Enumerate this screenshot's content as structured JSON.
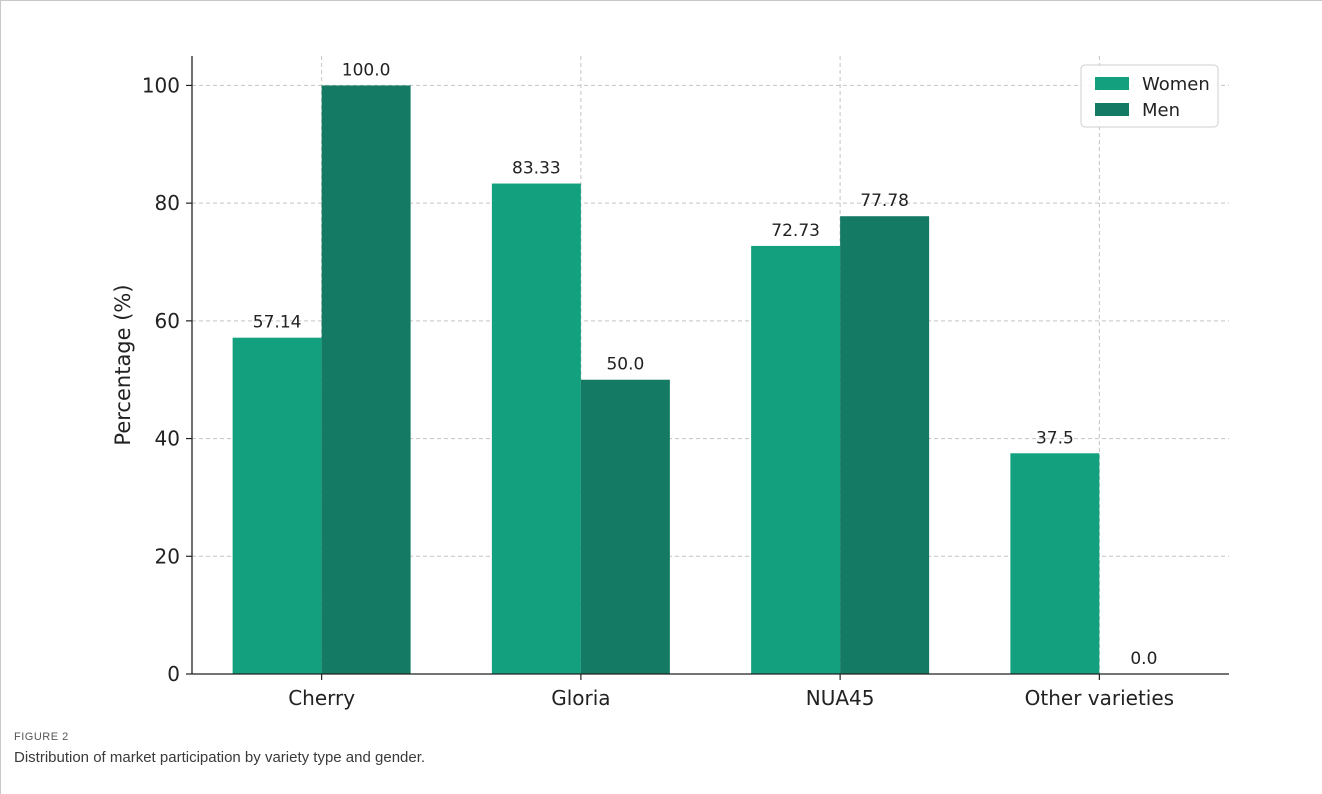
{
  "figure": {
    "label": "FIGURE 2",
    "caption": "Distribution of market participation by variety type and gender."
  },
  "colors": {
    "women": "#12a07e",
    "men": "#157a63",
    "grid": "#c4c4c4",
    "axis": "#222222"
  },
  "chart_data": {
    "type": "bar",
    "title": "",
    "xlabel": "",
    "ylabel": "Percentage (%)",
    "categories": [
      "Cherry",
      "Gloria",
      "NUA45",
      "Other varieties"
    ],
    "series": [
      {
        "name": "Women",
        "values": [
          57.14,
          83.33,
          72.73,
          37.5
        ],
        "labels": [
          "57.14",
          "83.33",
          "72.73",
          "37.5"
        ]
      },
      {
        "name": "Men",
        "values": [
          100.0,
          50.0,
          77.78,
          0.0
        ],
        "labels": [
          "100.0",
          "50.0",
          "77.78",
          "0.0"
        ]
      }
    ],
    "yticks": [
      "0",
      "20",
      "40",
      "60",
      "80",
      "100"
    ],
    "ylim": [
      0,
      105
    ],
    "grid": true,
    "legend_position": "top-right"
  }
}
